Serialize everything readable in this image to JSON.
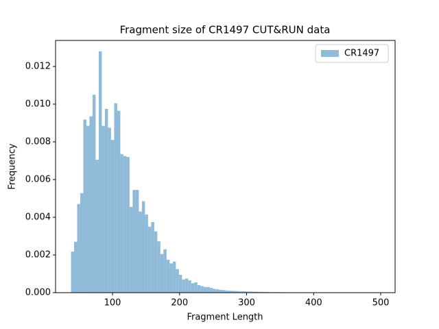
{
  "chart_data": {
    "type": "histogram",
    "title": "Fragment size of CR1497 CUT&RUN data",
    "x_label": "Fragment Length",
    "y_label": "Frequency",
    "bins": [
      38,
      42.6,
      47.2,
      51.8,
      56.4,
      61,
      65.6,
      70.2,
      74.8,
      79.4,
      84,
      88.6,
      93.2,
      97.8,
      102.4,
      107,
      111.6,
      116.2,
      120.8,
      125.4,
      130,
      134.6,
      139.2,
      143.8,
      148.4,
      153,
      157.6,
      162.2,
      166.8,
      171.4,
      176,
      180.6,
      185.2,
      189.8,
      194.4,
      199,
      203.6,
      208.2,
      212.8,
      217.4,
      222,
      226.6,
      231.2,
      235.8,
      240.4,
      245,
      249.6,
      254.2,
      258.8,
      263.4,
      268,
      272.6,
      277.2,
      281.8,
      286.4,
      291,
      295.6,
      300.2,
      304.8,
      309.4,
      314,
      318.6,
      323.2,
      327.8,
      332.4,
      337,
      341.6,
      346.2,
      350.8,
      355.4,
      360,
      364.6,
      369.2,
      373.8,
      378.4,
      383,
      387.6,
      392.2,
      396.8,
      401.4,
      406,
      410.6,
      415.2,
      419.8,
      424.4,
      429,
      433.6,
      438.2,
      442.8,
      447.4,
      452,
      456.6,
      461.2,
      465.8,
      470.4,
      475,
      479.6,
      484.2,
      488.8,
      493.4,
      498
    ],
    "series": [
      {
        "name": "CR1497",
        "color": "#8fbbd9",
        "values": [
          0.00218,
          0.0027,
          0.0047,
          0.00528,
          0.00918,
          0.00885,
          0.00935,
          0.0105,
          0.00705,
          0.0128,
          0.00885,
          0.00975,
          0.00875,
          0.0081,
          0.01005,
          0.00965,
          0.00735,
          0.00725,
          0.0072,
          0.00455,
          0.00545,
          0.00545,
          0.0043,
          0.00485,
          0.00415,
          0.0035,
          0.00375,
          0.00325,
          0.00272,
          0.00205,
          0.0023,
          0.00175,
          0.00155,
          0.00165,
          0.00125,
          0.00095,
          0.0007,
          0.00075,
          0.00065,
          0.0005,
          0.00055,
          0.0004,
          0.00035,
          0.0003,
          0.0003,
          0.00025,
          0.0002,
          0.00018,
          0.00015,
          0.00014,
          0.00012,
          0.0001,
          0.0001,
          9e-05,
          8e-05,
          7e-05,
          7e-05,
          6e-05,
          6e-05,
          5e-05,
          5e-05,
          4e-05,
          4e-05,
          4e-05,
          3e-05,
          3e-05,
          3e-05,
          3e-05,
          2e-05,
          2e-05,
          2e-05,
          2e-05,
          2e-05,
          2e-05,
          2e-05,
          2e-05,
          2e-05,
          2e-05,
          1e-05,
          1e-05,
          1e-05,
          1e-05,
          1e-05,
          1e-05,
          1e-05,
          1e-05,
          1e-05,
          1e-05,
          1e-05,
          1e-05,
          5e-06,
          5e-06,
          5e-06,
          5e-06,
          5e-06,
          5e-06,
          3e-06,
          3e-06,
          3e-06,
          3e-06
        ]
      }
    ],
    "xlim": [
      15,
      521.5
    ],
    "xticks": [
      100,
      200,
      300,
      400,
      500
    ],
    "ylim": [
      0,
      0.01338
    ],
    "yticks": [
      {
        "value": 0,
        "label": "0.000"
      },
      {
        "value": 0.002,
        "label": "0.002"
      },
      {
        "value": 0.004,
        "label": "0.004"
      },
      {
        "value": 0.006,
        "label": "0.006"
      },
      {
        "value": 0.008,
        "label": "0.008"
      },
      {
        "value": 0.01,
        "label": "0.010"
      },
      {
        "value": 0.012,
        "label": "0.012"
      }
    ],
    "legend": "upper right"
  }
}
